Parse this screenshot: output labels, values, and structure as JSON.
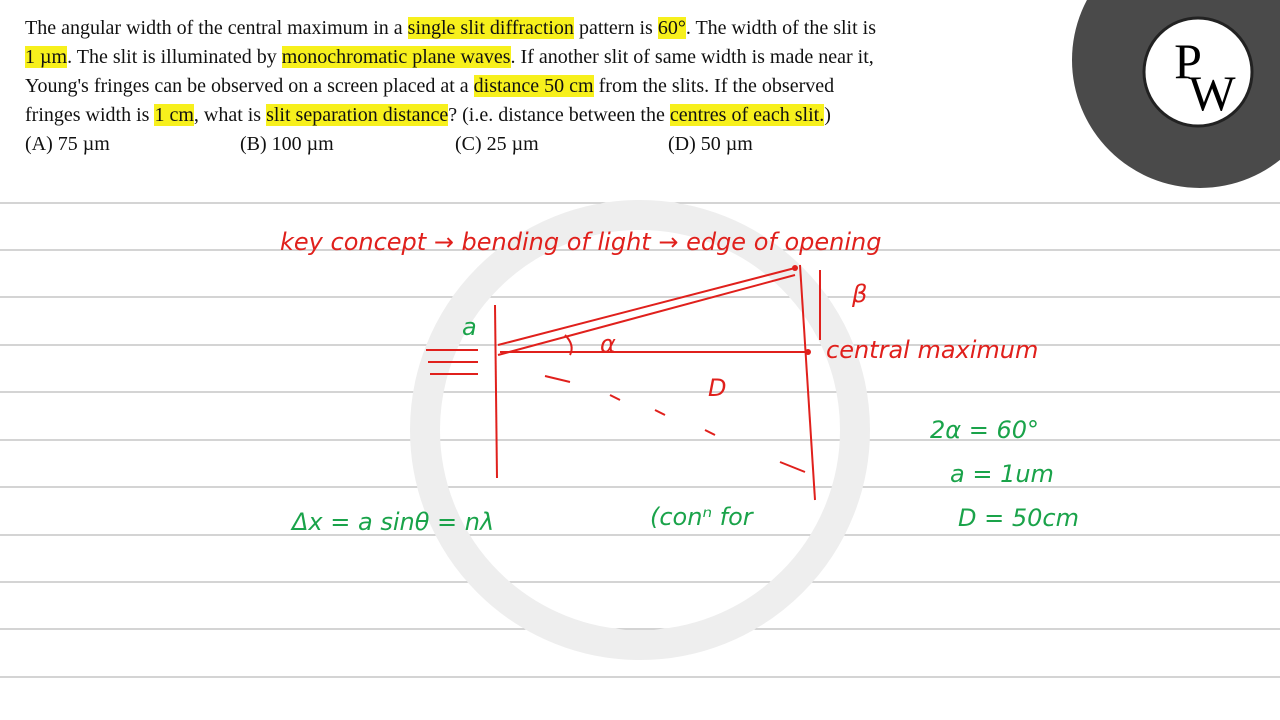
{
  "question": {
    "lines": [
      [
        {
          "text": "The angular width of the central maximum in a "
        },
        {
          "text": "single slit diffraction",
          "highlight": true
        },
        {
          "text": " pattern is "
        },
        {
          "text": "60°",
          "highlight": true
        },
        {
          "text": ". The width of the slit is"
        }
      ],
      [
        {
          "text": "1 µm",
          "highlight": true
        },
        {
          "text": ". The slit is illuminated by "
        },
        {
          "text": "monochromatic plane waves",
          "highlight": true
        },
        {
          "text": ". If another slit of same width is made near it,"
        }
      ],
      [
        {
          "text": "Young's fringes can be observed on a screen placed at a "
        },
        {
          "text": "distance 50 cm",
          "highlight": true
        },
        {
          "text": " from the slits. If the observed"
        }
      ],
      [
        {
          "text": "fringes width is "
        },
        {
          "text": "1 cm",
          "highlight": true
        },
        {
          "text": ", what is "
        },
        {
          "text": "slit separation distance",
          "highlight": true
        },
        {
          "text": "? (i.e. distance between the "
        },
        {
          "text": "centres of each slit.",
          "highlight": true
        },
        {
          "text": ")"
        }
      ]
    ],
    "options": [
      "(A) 75 µm",
      "(B) 100 µm",
      "(C) 25 µm",
      "(D) 50 µm"
    ]
  },
  "logo": {
    "top": "P",
    "bottom": "W"
  },
  "notes": [
    {
      "text": "key concept → bending of light → edge of opening",
      "color": "#e0201c"
    },
    {
      "text": "a",
      "color": "#1aa34a"
    },
    {
      "text": "α",
      "color": "#e0201c"
    },
    {
      "text": "β",
      "color": "#e0201c"
    },
    {
      "text": "central maximum",
      "color": "#e0201c"
    },
    {
      "text": "D",
      "color": "#e0201c"
    },
    {
      "text": "2α = 60°",
      "color": "#1aa34a"
    },
    {
      "text": "a = 1um",
      "color": "#1aa34a"
    },
    {
      "text": "D = 50cm",
      "color": "#1aa34a"
    },
    {
      "text": "Δx = a sinθ = nλ",
      "color": "#1aa34a"
    },
    {
      "text": "(conⁿ for",
      "color": "#1aa34a"
    }
  ]
}
